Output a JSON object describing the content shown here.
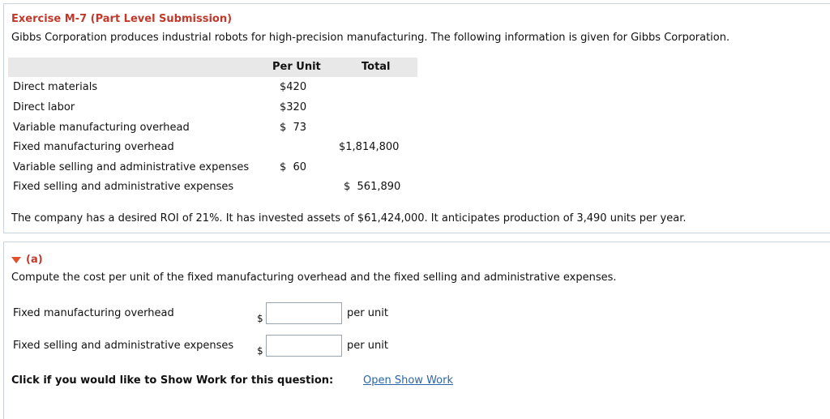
{
  "exercise": {
    "title": "Exercise M-7 (Part Level Submission)",
    "intro": "Gibbs Corporation produces industrial robots for high-precision manufacturing. The following information is given for Gibbs Corporation.",
    "table": {
      "headers": {
        "per_unit": "Per Unit",
        "total": "Total"
      },
      "rows": [
        {
          "label": "Direct materials",
          "per_unit": "$420",
          "total": ""
        },
        {
          "label": "Direct labor",
          "per_unit": "$320",
          "total": ""
        },
        {
          "label": "Variable manufacturing overhead",
          "per_unit": "$  73",
          "total": ""
        },
        {
          "label": "Fixed manufacturing overhead",
          "per_unit": "",
          "total": "$1,814,800"
        },
        {
          "label": "Variable selling and administrative expenses",
          "per_unit": "$  60",
          "total": ""
        },
        {
          "label": "Fixed selling and administrative expenses",
          "per_unit": "",
          "total": "$  561,890"
        }
      ]
    },
    "note": "The company has a desired ROI of 21%. It has invested assets of $61,424,000. It anticipates production of 3,490 units per year."
  },
  "part_a": {
    "label": "(a)",
    "instruction": "Compute the cost per unit of the fixed manufacturing overhead and the fixed selling and administrative expenses.",
    "fields": [
      {
        "label": "Fixed manufacturing overhead",
        "currency": "$",
        "value": "",
        "suffix": "per unit"
      },
      {
        "label": "Fixed selling and administrative expenses",
        "currency": "$",
        "value": "",
        "suffix": "per unit"
      }
    ],
    "show_work_prompt": "Click if you would like to Show Work for this question:",
    "show_work_link": "Open Show Work"
  },
  "colors": {
    "title": "#c0392b",
    "link": "#2a66a8",
    "triangle": "#e0502c",
    "header_bg": "#e8e8e8"
  }
}
